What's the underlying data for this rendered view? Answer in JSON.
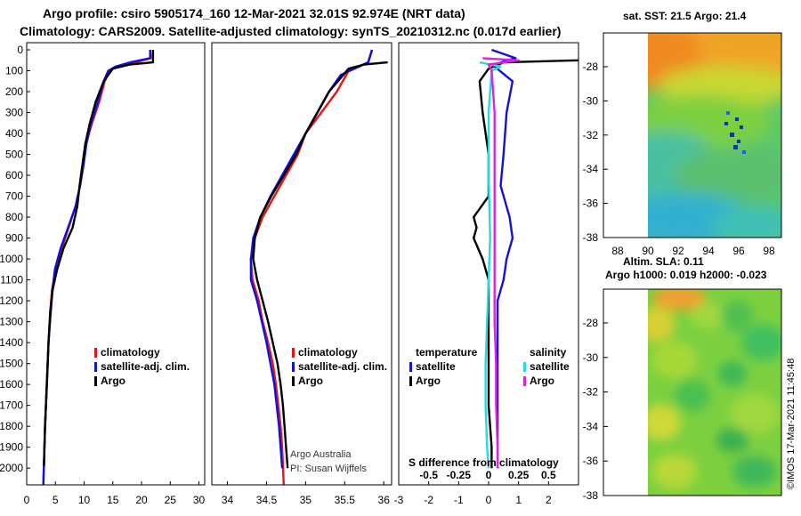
{
  "header": {
    "line1": "Argo profile: csiro 5905174_160 12-Mar-2021 32.01S 92.974E (NRT data)",
    "line2": "Climatology: CARS2009. Satellite-adjusted climatology: synTS_20210312.nc (0.017d earlier)"
  },
  "colors": {
    "climatology": "#ee1111",
    "satellite_adj": "#1111dd",
    "argo": "#000000",
    "satellite_salinity": "#22dddd",
    "argo_salinity": "#dd22dd"
  },
  "chart_data": [
    {
      "type": "line",
      "name": "temperature-profile",
      "xlim": [
        0,
        31
      ],
      "ylim": [
        2080,
        0
      ],
      "xticks": [
        "0",
        "5",
        "10",
        "15",
        "20",
        "25",
        "30"
      ],
      "yticks": [
        "0",
        "100",
        "200",
        "300",
        "400",
        "500",
        "600",
        "700",
        "800",
        "900",
        "1000",
        "1100",
        "1200",
        "1300",
        "1400",
        "1500",
        "1600",
        "1700",
        "1800",
        "1900",
        "2000"
      ],
      "legend": [
        "climatology",
        "satellite-adj. clim.",
        "Argo"
      ],
      "series": [
        {
          "name": "climatology",
          "color": "#ee1111",
          "points": [
            [
              21.5,
              0
            ],
            [
              21.6,
              40
            ],
            [
              19,
              60
            ],
            [
              15.5,
              80
            ],
            [
              14.5,
              100
            ],
            [
              13.6,
              150
            ],
            [
              12.6,
              250
            ],
            [
              11.4,
              350
            ],
            [
              10.3,
              450
            ],
            [
              9.8,
              550
            ],
            [
              9.3,
              650
            ],
            [
              8.5,
              750
            ],
            [
              7.3,
              850
            ],
            [
              6.1,
              950
            ],
            [
              5,
              1050
            ],
            [
              4.4,
              1150
            ],
            [
              4.1,
              1250
            ],
            [
              3.8,
              1400
            ],
            [
              3.5,
              1600
            ],
            [
              3.2,
              1800
            ],
            [
              2.9,
              2080
            ]
          ]
        },
        {
          "name": "satellite-adj. clim.",
          "color": "#1111dd",
          "points": [
            [
              21.5,
              0
            ],
            [
              21.5,
              40
            ],
            [
              18,
              60
            ],
            [
              15.5,
              80
            ],
            [
              14.2,
              100
            ],
            [
              13.4,
              150
            ],
            [
              12.4,
              250
            ],
            [
              11.2,
              350
            ],
            [
              10.4,
              450
            ],
            [
              9.9,
              550
            ],
            [
              9.3,
              650
            ],
            [
              8.5,
              750
            ],
            [
              7.2,
              850
            ],
            [
              5.9,
              950
            ],
            [
              4.9,
              1050
            ],
            [
              4.5,
              1150
            ],
            [
              4.2,
              1250
            ],
            [
              3.8,
              1400
            ],
            [
              3.5,
              1600
            ],
            [
              3.2,
              1800
            ],
            [
              2.9,
              2080
            ]
          ]
        },
        {
          "name": "Argo",
          "color": "#000000",
          "points": [
            [
              22,
              0
            ],
            [
              22,
              60
            ],
            [
              18,
              70
            ],
            [
              15,
              90
            ],
            [
              13.4,
              150
            ],
            [
              12,
              250
            ],
            [
              11,
              350
            ],
            [
              10.2,
              450
            ],
            [
              9.7,
              550
            ],
            [
              9.2,
              650
            ],
            [
              8.8,
              750
            ],
            [
              8,
              850
            ],
            [
              6.4,
              950
            ],
            [
              5.3,
              1050
            ],
            [
              4.5,
              1150
            ],
            [
              4.1,
              1250
            ],
            [
              3.8,
              1400
            ],
            [
              3.5,
              1600
            ],
            [
              3.2,
              1800
            ],
            [
              3,
              1990
            ]
          ]
        }
      ]
    },
    {
      "type": "line",
      "name": "salinity-profile",
      "xlim": [
        33.8,
        36.1
      ],
      "ylim": [
        2080,
        0
      ],
      "xticks": [
        "34",
        "34.5",
        "35",
        "35.5",
        "36"
      ],
      "legend": [
        "climatology",
        "satellite-adj. clim.",
        "Argo"
      ],
      "series": [
        {
          "name": "climatology",
          "color": "#ee1111",
          "points": [
            [
              35.85,
              0
            ],
            [
              35.8,
              60
            ],
            [
              35.55,
              100
            ],
            [
              35.4,
              200
            ],
            [
              35.2,
              300
            ],
            [
              35,
              400
            ],
            [
              34.9,
              500
            ],
            [
              34.75,
              600
            ],
            [
              34.6,
              700
            ],
            [
              34.45,
              800
            ],
            [
              34.35,
              900
            ],
            [
              34.3,
              1000
            ],
            [
              34.32,
              1100
            ],
            [
              34.4,
              1200
            ],
            [
              34.45,
              1300
            ],
            [
              34.52,
              1400
            ],
            [
              34.58,
              1500
            ],
            [
              34.62,
              1600
            ],
            [
              34.65,
              1700
            ],
            [
              34.68,
              1800
            ],
            [
              34.7,
              1900
            ],
            [
              34.72,
              2080
            ]
          ]
        },
        {
          "name": "satellite-adj. clim.",
          "color": "#1111dd",
          "points": [
            [
              35.85,
              0
            ],
            [
              35.8,
              60
            ],
            [
              35.45,
              120
            ],
            [
              35.3,
              200
            ],
            [
              35.15,
              300
            ],
            [
              35,
              400
            ],
            [
              34.85,
              500
            ],
            [
              34.7,
              600
            ],
            [
              34.55,
              700
            ],
            [
              34.42,
              800
            ],
            [
              34.33,
              900
            ],
            [
              34.3,
              1000
            ],
            [
              34.3,
              1100
            ],
            [
              34.38,
              1200
            ],
            [
              34.44,
              1300
            ],
            [
              34.5,
              1400
            ],
            [
              34.55,
              1500
            ],
            [
              34.6,
              1600
            ],
            [
              34.63,
              1700
            ],
            [
              34.66,
              1800
            ],
            [
              34.68,
              1900
            ],
            [
              34.7,
              2000
            ]
          ]
        },
        {
          "name": "Argo",
          "color": "#000000",
          "points": [
            [
              36.05,
              60
            ],
            [
              35.75,
              70
            ],
            [
              35.55,
              90
            ],
            [
              35.3,
              200
            ],
            [
              35.15,
              300
            ],
            [
              35,
              400
            ],
            [
              34.88,
              500
            ],
            [
              34.72,
              600
            ],
            [
              34.56,
              700
            ],
            [
              34.42,
              800
            ],
            [
              34.35,
              900
            ],
            [
              34.33,
              1000
            ],
            [
              34.38,
              1100
            ],
            [
              34.45,
              1200
            ],
            [
              34.52,
              1300
            ],
            [
              34.58,
              1400
            ],
            [
              34.64,
              1500
            ],
            [
              34.68,
              1600
            ],
            [
              34.71,
              1700
            ],
            [
              34.73,
              1800
            ],
            [
              34.75,
              1900
            ],
            [
              34.77,
              2000
            ]
          ]
        }
      ]
    },
    {
      "type": "line",
      "name": "difference-profile",
      "xlim": [
        -3,
        3
      ],
      "ylim": [
        2080,
        0
      ],
      "xticks": [
        "-3",
        "-2",
        "-1",
        "0",
        "1",
        "2"
      ],
      "s_xticks": [
        "-0.5",
        "-0.25",
        "0",
        "0.25",
        "0.5"
      ],
      "xlabel": "S difference from climatology",
      "legend_temperature": {
        "title": "temperature",
        "items": [
          "satellite",
          "Argo"
        ]
      },
      "legend_salinity": {
        "title": "salinity",
        "items": [
          "satellite",
          "Argo"
        ]
      },
      "series": [
        {
          "name": "temperature satellite",
          "color": "#1111dd",
          "points": [
            [
              0.1,
              0
            ],
            [
              0.9,
              40
            ],
            [
              0.4,
              60
            ],
            [
              0.2,
              80
            ],
            [
              0.8,
              150
            ],
            [
              0.6,
              300
            ],
            [
              0.5,
              500
            ],
            [
              0.4,
              650
            ],
            [
              0.7,
              800
            ],
            [
              0.8,
              900
            ],
            [
              0.6,
              1000
            ],
            [
              0.5,
              1100
            ],
            [
              0.3,
              1200
            ],
            [
              0.3,
              1400
            ],
            [
              0.3,
              1600
            ],
            [
              0.3,
              1800
            ],
            [
              0.3,
              2000
            ]
          ]
        },
        {
          "name": "temperature Argo",
          "color": "#000000",
          "points": [
            [
              3,
              50
            ],
            [
              0.5,
              60
            ],
            [
              0,
              90
            ],
            [
              -0.3,
              150
            ],
            [
              -0.2,
              300
            ],
            [
              0,
              500
            ],
            [
              0,
              700
            ],
            [
              -0.5,
              800
            ],
            [
              -0.4,
              850
            ],
            [
              -0.5,
              900
            ],
            [
              -0.2,
              1000
            ],
            [
              0,
              1100
            ],
            [
              0,
              1300
            ],
            [
              0,
              1500
            ],
            [
              0,
              1700
            ],
            [
              0.1,
              1900
            ],
            [
              0.1,
              2000
            ]
          ]
        },
        {
          "name": "salinity satellite",
          "color": "#22dddd",
          "points": [
            [
              -0.3,
              60
            ],
            [
              0.4,
              80
            ],
            [
              0.1,
              100
            ],
            [
              0,
              300
            ],
            [
              0,
              600
            ],
            [
              0.05,
              900
            ],
            [
              0,
              1100
            ],
            [
              -0.05,
              1300
            ],
            [
              -0.1,
              1500
            ],
            [
              -0.1,
              1700
            ],
            [
              -0.05,
              1900
            ],
            [
              0,
              2000
            ]
          ]
        },
        {
          "name": "salinity Argo",
          "color": "#dd22dd",
          "points": [
            [
              -0.2,
              40
            ],
            [
              1,
              50
            ],
            [
              0,
              70
            ],
            [
              0.1,
              100
            ],
            [
              0.2,
              300
            ],
            [
              0.2,
              600
            ],
            [
              0.2,
              900
            ],
            [
              0.2,
              1100
            ],
            [
              0.2,
              1300
            ],
            [
              0.25,
              1500
            ],
            [
              0.25,
              1700
            ],
            [
              0.3,
              1900
            ],
            [
              0.3,
              2000
            ]
          ]
        }
      ]
    },
    {
      "type": "heatmap",
      "name": "sst-map",
      "title": "sat. SST: 21.5 Argo: 21.4",
      "xlim": [
        86.5,
        99
      ],
      "ylim": [
        -38,
        -26.5
      ],
      "xticks": [
        "88",
        "90",
        "92",
        "94",
        "96",
        "98"
      ],
      "yticks": [
        "-28",
        "-30",
        "-32",
        "-34",
        "-36",
        "-38"
      ]
    },
    {
      "type": "heatmap",
      "name": "sla-map",
      "title1": "Altim. SLA: 0.11",
      "title2": "Argo h1000: 0.019 h2000: -0.023",
      "yticks": [
        "-28",
        "-30",
        "-32",
        "-34",
        "-36",
        "-38"
      ]
    }
  ],
  "notes": {
    "argo_australia": "Argo Australia",
    "pi": "PI: Susan Wijffels",
    "credit": "©IMOS 17-Mar-2021 11:45:48"
  }
}
